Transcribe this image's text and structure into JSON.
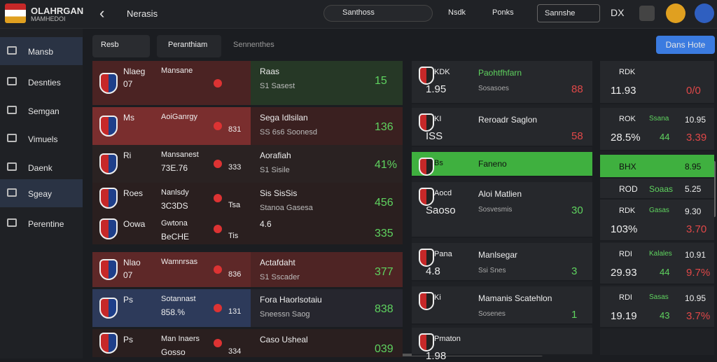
{
  "header": {
    "logo": "OLAHRGAN",
    "logo_sub": "MAMHEDOI",
    "page": "Nerasis",
    "search": "Santhoss",
    "link1": "Nsdk",
    "link2": "Ponks",
    "select": "Sannshe",
    "badge": "DX"
  },
  "sidebar": [
    "Mansb",
    "Desnties",
    "Semgan",
    "Vimuels",
    "Daenk",
    "Sgeay",
    "Perentine"
  ],
  "tabs": [
    "Resb",
    "Peranthiam",
    "Sennenthes"
  ],
  "button": "Dans Hote",
  "left_rows": [
    {
      "a": "Nlaeg",
      "b": "07",
      "c": "Mansane",
      "e": "Raas",
      "f": "S1 Sasest",
      "g": "15"
    },
    {
      "a": "Ms",
      "c": "AoiGanrgy",
      "d": "831",
      "e": "Sega Idlsilan",
      "f": "SS 6s6 Soonesd",
      "g": "136"
    },
    {
      "a": "Ri",
      "c": "Mansanest",
      "b2": "73E.76",
      "d": "333",
      "e": "Aorafiah",
      "f": "S1 Sisile",
      "g": "41%"
    },
    {
      "a": "Roes",
      "c": "Nanlsdy",
      "b2": "3C3DS",
      "d": "Tsa",
      "e": "Sis SisSis",
      "f": "Stanoa Gasesa",
      "g": "456"
    },
    {
      "a": "Oowa",
      "c": "Gwtona",
      "b2": "BeCHE",
      "d": "Tis",
      "e": "4.6",
      "g": "335"
    },
    {
      "a": "Nlao",
      "b": "07",
      "c": "Wamnrsas",
      "d": "836",
      "e": "Actafdaht",
      "f": "S1 Sscader",
      "g": "377"
    },
    {
      "a": "Ps",
      "c": "Sotannast",
      "b2": "858.%",
      "d": "131",
      "e": "Fora Haorlsotaiu",
      "f": "Sneessn Saog",
      "g": "838"
    },
    {
      "a": "Ps",
      "c": "Man Inaers",
      "b2": "Gosso",
      "d": "334",
      "e": "Caso Usheal",
      "g": "039"
    }
  ],
  "middle_rows": [
    {
      "a": "KDK",
      "b": "1.95",
      "c": "Paohtfhfarn",
      "d": "Sosasoes",
      "e": "88"
    },
    {
      "a": "KI",
      "b": "ISS",
      "c": "Reroadr Saglon",
      "e": "58"
    },
    {
      "a": "Bs",
      "c": "Faneno"
    },
    {
      "a": "Aocd",
      "b": "Saoso",
      "c": "Aloi Matlien",
      "d": "Sosvesmis",
      "e": "30"
    },
    {
      "a": "Pana",
      "b": "4.8",
      "c": "Manlsegar",
      "d": "Ssi Snes",
      "e": "3"
    },
    {
      "a": "Ki",
      "c": "Mamanis Scatehlon",
      "d": "Sosenes",
      "e": "1"
    },
    {
      "a": "Pmaton",
      "b": "1.98"
    }
  ],
  "right_rows": [
    {
      "a": "RDK",
      "b": "11.93",
      "f": "0/0"
    },
    {
      "a": "ROK",
      "b": "28.5%",
      "c": "Ssana",
      "d": "10.95",
      "e": "44",
      "f": "3.39"
    },
    {
      "a": "BHX",
      "d": "8.95"
    },
    {
      "a": "ROD",
      "c": "Soaas",
      "d": "5.25"
    },
    {
      "a": "RDK",
      "b": "103%",
      "c": "Gasas",
      "d": "9.30",
      "f": "3.70"
    },
    {
      "a": "RDI",
      "b": "29.93",
      "c": "Kalales",
      "d": "10.91",
      "e": "44",
      "f": "9.7%"
    },
    {
      "a": "RDI",
      "b": "19.19",
      "c": "Sasas",
      "d": "10.95",
      "e": "43",
      "f": "3.7%"
    }
  ]
}
